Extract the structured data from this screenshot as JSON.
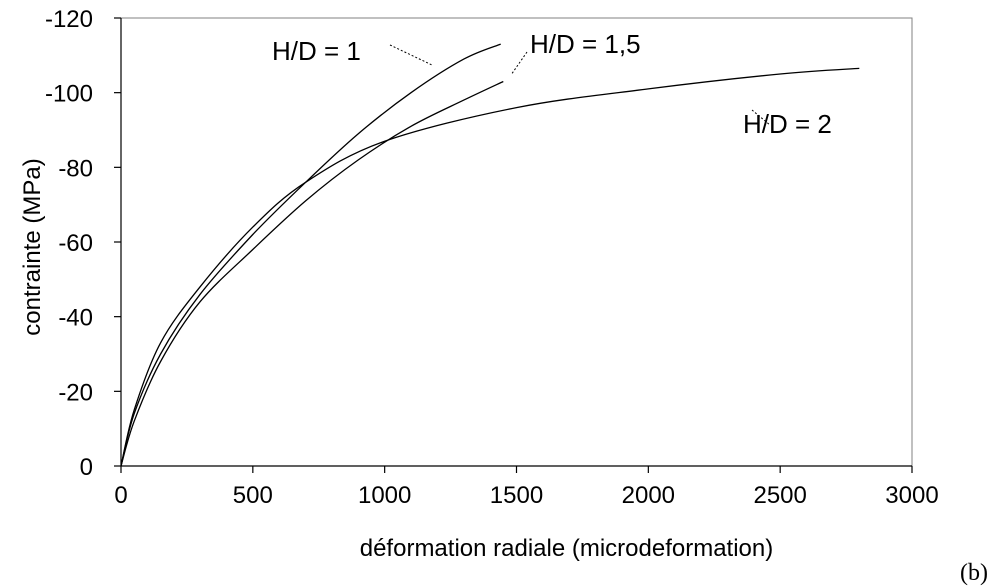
{
  "chart_data": {
    "type": "line",
    "title": "",
    "xlabel": "déformation radiale (microdeformation)",
    "ylabel": "contrainte (MPa)",
    "xlim": [
      0,
      3000
    ],
    "ylim": [
      0,
      -120
    ],
    "y_axis_inverted": true,
    "x_ticks": [
      0,
      500,
      1000,
      1500,
      2000,
      2500,
      3000
    ],
    "y_ticks": [
      0,
      -20,
      -40,
      -60,
      -80,
      -100,
      -120
    ],
    "x_tick_labels": [
      "0",
      "500",
      "1000",
      "1500",
      "2000",
      "2500",
      "3000"
    ],
    "y_tick_labels": [
      "0",
      "-20",
      "-40",
      "-60",
      "-80",
      "-100",
      "-120"
    ],
    "grid": false,
    "legend": "none",
    "series": [
      {
        "name": "H/D = 1",
        "x": [
          0,
          50,
          150,
          300,
          500,
          700,
          900,
          1100,
          1300,
          1440
        ],
        "y": [
          0,
          -14,
          -30,
          -46,
          -62,
          -76,
          -89,
          -100,
          -109,
          -113
        ]
      },
      {
        "name": "H/D = 1,5",
        "x": [
          0,
          50,
          150,
          300,
          500,
          700,
          900,
          1100,
          1300,
          1450
        ],
        "y": [
          0,
          -12,
          -28,
          -44,
          -58,
          -71,
          -82,
          -91,
          -98,
          -103
        ]
      },
      {
        "name": "H/D = 2",
        "x": [
          0,
          50,
          150,
          300,
          500,
          700,
          1000,
          1500,
          2000,
          2500,
          2800
        ],
        "y": [
          0,
          -15,
          -33,
          -48,
          -64,
          -76,
          -87,
          -96,
          -101,
          -105,
          -106.5
        ]
      }
    ],
    "annotations": [
      {
        "series": "H/D = 1",
        "text": "H/D = 1"
      },
      {
        "series": "H/D = 1,5",
        "text": "H/D = 1,5"
      },
      {
        "series": "H/D = 2",
        "text": "H/D = 2"
      }
    ],
    "panel_label": "(b)"
  }
}
